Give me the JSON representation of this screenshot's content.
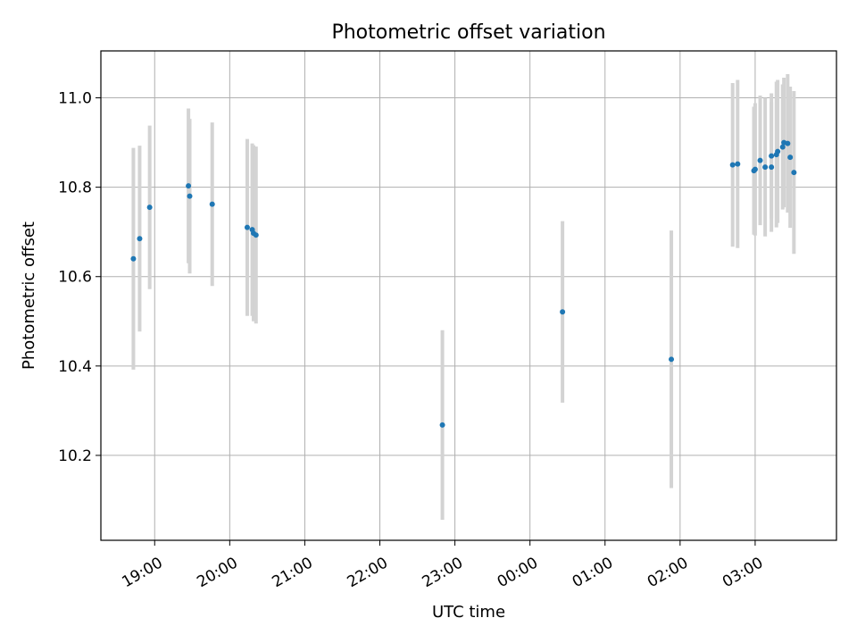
{
  "chart_data": {
    "type": "scatter",
    "title": "Photometric offset variation",
    "xlabel": "UTC time",
    "ylabel": "Photometric offset",
    "x_unit": "UTC time (HH:MM)",
    "xlim": [
      "18:17",
      "04:05"
    ],
    "ylim": [
      10.01,
      11.105
    ],
    "grid": true,
    "yticks": [
      10.2,
      10.4,
      10.6,
      10.8,
      11.0
    ],
    "ytick_labels": [
      "10.2",
      "10.4",
      "10.6",
      "10.8",
      "11.0"
    ],
    "xticks": [
      "19:00",
      "20:00",
      "21:00",
      "22:00",
      "23:00",
      "00:00",
      "01:00",
      "02:00",
      "03:00"
    ],
    "xtick_labels": [
      "19:00",
      "20:00",
      "21:00",
      "22:00",
      "23:00",
      "00:00",
      "01:00",
      "02:00",
      "03:00"
    ],
    "colors": {
      "points": "#1f77b4",
      "errorbars": "#d3d3d3",
      "grid": "#b0b0b0"
    },
    "series": [
      {
        "points": [
          {
            "x": "18:43",
            "y": 10.64,
            "err_lo": 0.248,
            "err_hi": 0.248
          },
          {
            "x": "18:48",
            "y": 10.685,
            "err_lo": 0.208,
            "err_hi": 0.208
          },
          {
            "x": "18:56",
            "y": 10.755,
            "err_lo": 0.183,
            "err_hi": 0.183
          },
          {
            "x": "19:27",
            "y": 10.803,
            "err_lo": 0.173,
            "err_hi": 0.173
          },
          {
            "x": "19:28",
            "y": 10.78,
            "err_lo": 0.173,
            "err_hi": 0.173
          },
          {
            "x": "19:46",
            "y": 10.762,
            "err_lo": 0.183,
            "err_hi": 0.183
          },
          {
            "x": "20:14",
            "y": 10.71,
            "err_lo": 0.198,
            "err_hi": 0.198
          },
          {
            "x": "20:18",
            "y": 10.705,
            "err_lo": 0.193,
            "err_hi": 0.193
          },
          {
            "x": "20:19",
            "y": 10.697,
            "err_lo": 0.197,
            "err_hi": 0.197
          },
          {
            "x": "20:21",
            "y": 10.693,
            "err_lo": 0.198,
            "err_hi": 0.198
          },
          {
            "x": "22:50",
            "y": 10.268,
            "err_lo": 0.212,
            "err_hi": 0.212
          },
          {
            "x": "00:26",
            "y": 10.521,
            "err_lo": 0.203,
            "err_hi": 0.203
          },
          {
            "x": "01:53",
            "y": 10.415,
            "err_lo": 0.288,
            "err_hi": 0.288
          },
          {
            "x": "02:42",
            "y": 10.85,
            "err_lo": 0.183,
            "err_hi": 0.183
          },
          {
            "x": "02:46",
            "y": 10.852,
            "err_lo": 0.188,
            "err_hi": 0.188
          },
          {
            "x": "02:59",
            "y": 10.837,
            "err_lo": 0.143,
            "err_hi": 0.143
          },
          {
            "x": "03:00",
            "y": 10.84,
            "err_lo": 0.148,
            "err_hi": 0.148
          },
          {
            "x": "03:04",
            "y": 10.86,
            "err_lo": 0.145,
            "err_hi": 0.145
          },
          {
            "x": "03:08",
            "y": 10.845,
            "err_lo": 0.155,
            "err_hi": 0.155
          },
          {
            "x": "03:13",
            "y": 10.845,
            "err_lo": 0.145,
            "err_hi": 0.145
          },
          {
            "x": "03:13",
            "y": 10.87,
            "err_lo": 0.14,
            "err_hi": 0.14
          },
          {
            "x": "03:17",
            "y": 10.873,
            "err_lo": 0.163,
            "err_hi": 0.163
          },
          {
            "x": "03:18",
            "y": 10.88,
            "err_lo": 0.16,
            "err_hi": 0.16
          },
          {
            "x": "03:22",
            "y": 10.89,
            "err_lo": 0.14,
            "err_hi": 0.14
          },
          {
            "x": "03:23",
            "y": 10.9,
            "err_lo": 0.145,
            "err_hi": 0.145
          },
          {
            "x": "03:26",
            "y": 10.898,
            "err_lo": 0.155,
            "err_hi": 0.155
          },
          {
            "x": "03:28",
            "y": 10.867,
            "err_lo": 0.158,
            "err_hi": 0.158
          },
          {
            "x": "03:31",
            "y": 10.833,
            "err_lo": 0.182,
            "err_hi": 0.182
          }
        ]
      }
    ]
  }
}
